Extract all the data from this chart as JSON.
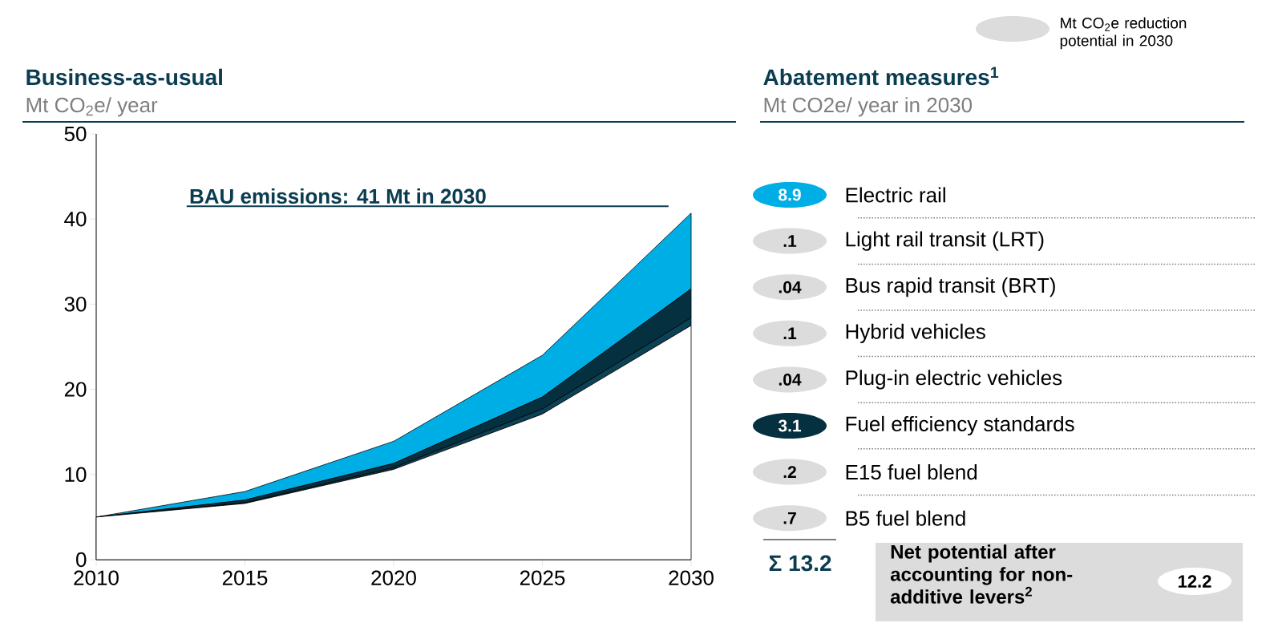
{
  "chart_data": [
    {
      "type": "area",
      "title": "Business-as-usual",
      "ylabel": "Mt CO$_{2}$e/ year",
      "stacked": true,
      "x": [
        2010,
        2015,
        2020,
        2025,
        2030
      ],
      "xlim": [
        2010,
        2030
      ],
      "xticks": [
        2010,
        2015,
        2020,
        2025,
        2030
      ],
      "ylim": [
        0,
        50
      ],
      "yticks": [
        0,
        10,
        20,
        30,
        40,
        50
      ],
      "series": [
        {
          "color": "#ffffff",
          "values": [
            5,
            6.6,
            10.6,
            17.1,
            27.5
          ]
        },
        {
          "color": "#0b4257",
          "values": [
            0,
            0.1,
            0.2,
            0.6,
            0.9
          ]
        },
        {
          "color": "#05303f",
          "values": [
            0,
            0.3,
            0.5,
            1.4,
            3.4
          ]
        },
        {
          "color": "#00aee6",
          "values": [
            0,
            1.0,
            2.6,
            4.9,
            8.9
          ]
        }
      ],
      "ref_lines": [
        {
          "axis": "y",
          "value": 41.5,
          "label": "BAU emissions: 41 Mt in 2030",
          "color": "#0a3d50"
        }
      ]
    },
    {
      "type": "other",
      "title": "Abatement measures$^{1}$",
      "subtitle": "Mt CO2e/ year in 2030",
      "legend_title": "Mt CO$_{2}$e reduction potential in 2030",
      "categories": [
        "Electric rail",
        "Light rail transit (LRT)",
        "Bus rapid transit (BRT)",
        "Hybrid vehicles",
        "Plug-in electric vehicles",
        "Fuel efficiency standards",
        "E15 fuel blend",
        "B5 fuel blend"
      ],
      "value_labels": [
        "8.9",
        ".1",
        ".04",
        ".1",
        ".04",
        "3.1",
        ".2",
        ".7"
      ],
      "colors": [
        "#00aee6",
        "#dcdcdc",
        "#dcdcdc",
        "#dcdcdc",
        "#dcdcdc",
        "#05303f",
        "#dcdcdc",
        "#dcdcdc"
      ],
      "annotations": [
        "Σ 13.2",
        "Net potential after accounting for non-additive levers$^{2}$",
        "12.2"
      ]
    }
  ]
}
